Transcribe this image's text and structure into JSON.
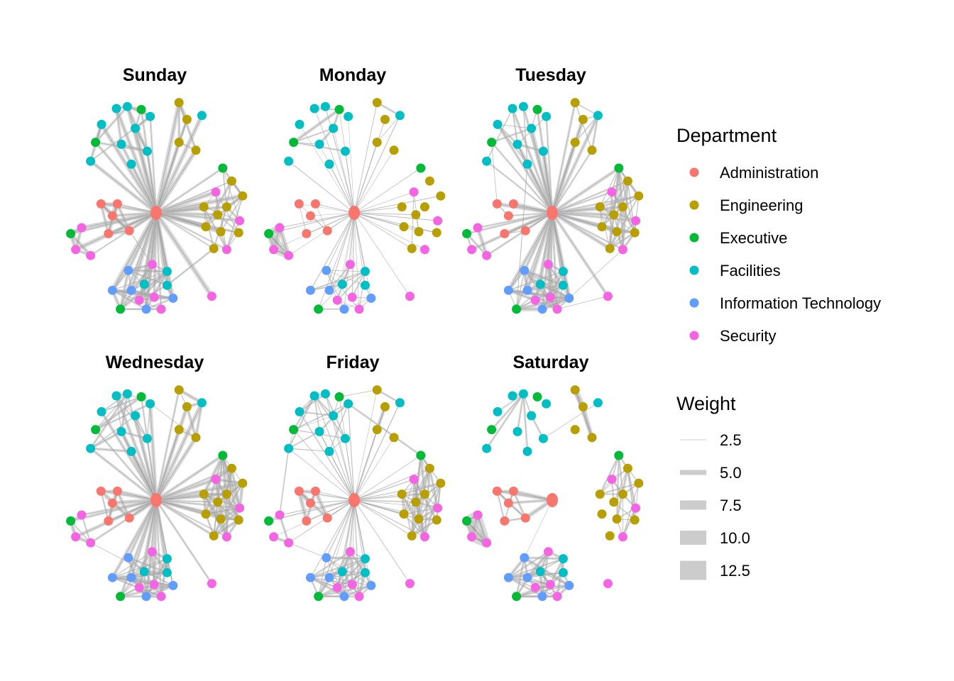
{
  "chart_data": {
    "type": "network",
    "facet_by": "day",
    "panels": [
      {
        "title": "Sunday",
        "edge_density": "high"
      },
      {
        "title": "Monday",
        "edge_density": "low"
      },
      {
        "title": "Tuesday",
        "edge_density": "high"
      },
      {
        "title": "Wednesday",
        "edge_density": "high"
      },
      {
        "title": "Friday",
        "edge_density": "medium"
      },
      {
        "title": "Saturday",
        "edge_density": "clustered"
      }
    ],
    "legend_department": {
      "title": "Department",
      "items": [
        {
          "label": "Administration",
          "color": "#F8766D"
        },
        {
          "label": "Engineering",
          "color": "#B79F00"
        },
        {
          "label": "Executive",
          "color": "#00BA38"
        },
        {
          "label": "Facilities",
          "color": "#00BFC4"
        },
        {
          "label": "Information Technology",
          "color": "#619CFF"
        },
        {
          "label": "Security",
          "color": "#F564E3"
        }
      ]
    },
    "legend_weight": {
      "title": "Weight",
      "items": [
        {
          "label": "2.5",
          "value": 2.5
        },
        {
          "label": "5.0",
          "value": 5.0
        },
        {
          "label": "7.5",
          "value": 7.5
        },
        {
          "label": "10.0",
          "value": 10.0
        },
        {
          "label": "12.5",
          "value": 12.5
        }
      ]
    },
    "edge_color": "#000000",
    "weight_legend_color": "#CCCCCC",
    "nodes": [
      {
        "id": "hub",
        "dept": "Administration",
        "x": 0.0,
        "y": 0.0
      },
      {
        "id": "a1",
        "dept": "Administration",
        "x": -0.555,
        "y": -0.09
      },
      {
        "id": "a2",
        "dept": "Administration",
        "x": -0.39,
        "y": -0.09
      },
      {
        "id": "a3",
        "dept": "Administration",
        "x": -0.44,
        "y": 0.03
      },
      {
        "id": "a4",
        "dept": "Administration",
        "x": -0.27,
        "y": 0.18
      },
      {
        "id": "a5",
        "dept": "Administration",
        "x": -0.48,
        "y": 0.21
      },
      {
        "id": "s1",
        "dept": "Security",
        "x": -0.75,
        "y": 0.15
      },
      {
        "id": "x1",
        "dept": "Executive",
        "x": -0.86,
        "y": 0.21
      },
      {
        "id": "s2",
        "dept": "Security",
        "x": -0.81,
        "y": 0.37
      },
      {
        "id": "s3",
        "dept": "Security",
        "x": -0.66,
        "y": 0.43
      },
      {
        "id": "f1",
        "dept": "Facilities",
        "x": -0.4,
        "y": -1.05
      },
      {
        "id": "f2",
        "dept": "Facilities",
        "x": -0.29,
        "y": -1.07
      },
      {
        "id": "x2",
        "dept": "Executive",
        "x": -0.15,
        "y": -1.04
      },
      {
        "id": "f3",
        "dept": "Facilities",
        "x": -0.55,
        "y": -0.89
      },
      {
        "id": "f4",
        "dept": "Facilities",
        "x": -0.06,
        "y": -0.97
      },
      {
        "id": "f5",
        "dept": "Facilities",
        "x": -0.21,
        "y": -0.85
      },
      {
        "id": "x3",
        "dept": "Executive",
        "x": -0.61,
        "y": -0.71
      },
      {
        "id": "f6",
        "dept": "Facilities",
        "x": -0.35,
        "y": -0.69
      },
      {
        "id": "f7",
        "dept": "Facilities",
        "x": -0.66,
        "y": -0.52
      },
      {
        "id": "f8",
        "dept": "Facilities",
        "x": -0.09,
        "y": -0.62
      },
      {
        "id": "f9",
        "dept": "Facilities",
        "x": -0.25,
        "y": -0.49
      },
      {
        "id": "e1",
        "dept": "Engineering",
        "x": 0.23,
        "y": -1.11
      },
      {
        "id": "e2",
        "dept": "Engineering",
        "x": 0.31,
        "y": -0.94
      },
      {
        "id": "f10",
        "dept": "Facilities",
        "x": 0.46,
        "y": -0.98
      },
      {
        "id": "e3",
        "dept": "Engineering",
        "x": 0.23,
        "y": -0.71
      },
      {
        "id": "e4",
        "dept": "Engineering",
        "x": 0.4,
        "y": -0.63
      },
      {
        "id": "x4",
        "dept": "Executive",
        "x": 0.67,
        "y": -0.45
      },
      {
        "id": "e5",
        "dept": "Engineering",
        "x": 0.76,
        "y": -0.32
      },
      {
        "id": "s4",
        "dept": "Security",
        "x": 0.6,
        "y": -0.21
      },
      {
        "id": "e6",
        "dept": "Engineering",
        "x": 0.87,
        "y": -0.17
      },
      {
        "id": "e7",
        "dept": "Engineering",
        "x": 0.48,
        "y": -0.06
      },
      {
        "id": "e8",
        "dept": "Engineering",
        "x": 0.71,
        "y": -0.06
      },
      {
        "id": "e9",
        "dept": "Engineering",
        "x": 0.62,
        "y": 0.02
      },
      {
        "id": "s5",
        "dept": "Security",
        "x": 0.84,
        "y": 0.08
      },
      {
        "id": "e10",
        "dept": "Engineering",
        "x": 0.5,
        "y": 0.14
      },
      {
        "id": "e11",
        "dept": "Engineering",
        "x": 0.65,
        "y": 0.19
      },
      {
        "id": "e12",
        "dept": "Engineering",
        "x": 0.83,
        "y": 0.2
      },
      {
        "id": "e13",
        "dept": "Engineering",
        "x": 0.58,
        "y": 0.36
      },
      {
        "id": "s6",
        "dept": "Security",
        "x": 0.71,
        "y": 0.37
      },
      {
        "id": "s7",
        "dept": "Security",
        "x": -0.04,
        "y": 0.52
      },
      {
        "id": "i1",
        "dept": "Information Technology",
        "x": -0.28,
        "y": 0.58
      },
      {
        "id": "f11",
        "dept": "Facilities",
        "x": 0.11,
        "y": 0.59
      },
      {
        "id": "f12",
        "dept": "Facilities",
        "x": -0.12,
        "y": 0.72
      },
      {
        "id": "f13",
        "dept": "Facilities",
        "x": 0.11,
        "y": 0.73
      },
      {
        "id": "i2",
        "dept": "Information Technology",
        "x": -0.44,
        "y": 0.78
      },
      {
        "id": "i3",
        "dept": "Information Technology",
        "x": -0.25,
        "y": 0.78
      },
      {
        "id": "s8",
        "dept": "Security",
        "x": -0.02,
        "y": 0.85
      },
      {
        "id": "i4",
        "dept": "Information Technology",
        "x": 0.17,
        "y": 0.86
      },
      {
        "id": "s9",
        "dept": "Security",
        "x": -0.17,
        "y": 0.88
      },
      {
        "id": "x5",
        "dept": "Executive",
        "x": -0.36,
        "y": 0.97
      },
      {
        "id": "i5",
        "dept": "Information Technology",
        "x": -0.1,
        "y": 0.97
      },
      {
        "id": "s10",
        "dept": "Security",
        "x": 0.05,
        "y": 0.97
      },
      {
        "id": "s11",
        "dept": "Security",
        "x": 0.56,
        "y": 0.84
      }
    ]
  }
}
